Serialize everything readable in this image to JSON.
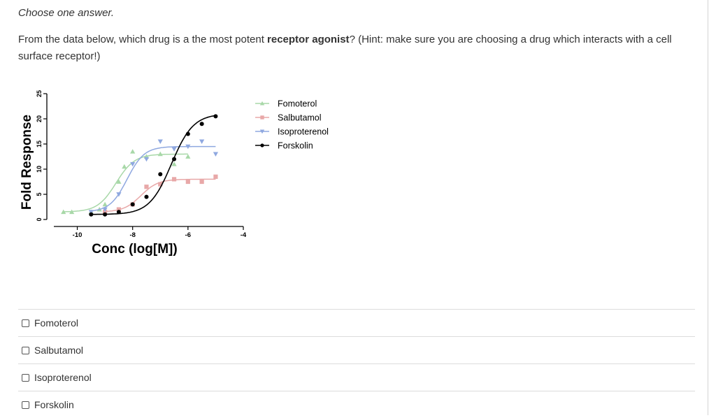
{
  "instruction": "Choose one answer.",
  "question": {
    "prefix": "From the data below, which drug is a the most potent ",
    "bold": "receptor agonist",
    "suffix": "? (Hint: make sure you are choosing a drug which interacts with a cell surface receptor!)"
  },
  "options": [
    {
      "label": "Fomoterol",
      "checked": false
    },
    {
      "label": "Salbutamol",
      "checked": false
    },
    {
      "label": "Isoproterenol",
      "checked": false
    },
    {
      "label": "Forskolin",
      "checked": false
    }
  ],
  "chart_data": {
    "type": "line",
    "title": "",
    "xlabel": "Conc (log[M])",
    "ylabel": "Fold Response",
    "xlim": [
      -11.1,
      -4
    ],
    "ylim": [
      0,
      25
    ],
    "xticks": [
      "-10",
      "-8",
      "-6",
      "-4"
    ],
    "yticks": [
      "0",
      "5",
      "10",
      "15",
      "20",
      "25"
    ],
    "legend_position": "right",
    "series": [
      {
        "name": "Fomoterol",
        "color": "#a8d8a8",
        "marker": "triangle-up",
        "points": [
          [
            -10.5,
            1.5
          ],
          [
            -10.2,
            1.5
          ],
          [
            -9.5,
            1.5
          ],
          [
            -9.2,
            2
          ],
          [
            -9.0,
            3
          ],
          [
            -8.5,
            7.5
          ],
          [
            -8.3,
            10.5
          ],
          [
            -8.0,
            13.5
          ],
          [
            -7.5,
            12.5
          ],
          [
            -7.0,
            13
          ],
          [
            -6.5,
            11
          ],
          [
            -6.0,
            12.5
          ]
        ],
        "curve": {
          "bottom": 1.5,
          "top": 13.0,
          "ec50": -8.6,
          "hill": 1.3
        }
      },
      {
        "name": "Salbutamol",
        "color": "#e8a8a8",
        "marker": "square",
        "points": [
          [
            -9.0,
            1.5
          ],
          [
            -8.5,
            2
          ],
          [
            -8.0,
            3
          ],
          [
            -7.5,
            6.5
          ],
          [
            -7.0,
            7
          ],
          [
            -6.5,
            8
          ],
          [
            -6.0,
            7.5
          ],
          [
            -5.5,
            7.5
          ],
          [
            -5.0,
            8.5
          ]
        ],
        "curve": {
          "bottom": 1.5,
          "top": 8.0,
          "ec50": -7.7,
          "hill": 1.4
        }
      },
      {
        "name": "Isoproterenol",
        "color": "#8fa8e0",
        "marker": "triangle-down",
        "points": [
          [
            -9.5,
            1.5
          ],
          [
            -9.0,
            2
          ],
          [
            -8.5,
            5
          ],
          [
            -8.0,
            11
          ],
          [
            -7.5,
            12
          ],
          [
            -7.0,
            15.5
          ],
          [
            -6.5,
            14
          ],
          [
            -6.0,
            14.5
          ],
          [
            -5.5,
            15.5
          ],
          [
            -5.0,
            13
          ]
        ],
        "curve": {
          "bottom": 1.5,
          "top": 14.5,
          "ec50": -8.2,
          "hill": 1.4
        }
      },
      {
        "name": "Forskolin",
        "color": "#000000",
        "marker": "circle",
        "points": [
          [
            -9.5,
            1
          ],
          [
            -9.0,
            1
          ],
          [
            -8.5,
            1.5
          ],
          [
            -8.0,
            3
          ],
          [
            -7.5,
            4.5
          ],
          [
            -7.0,
            9
          ],
          [
            -6.5,
            12
          ],
          [
            -6.0,
            17
          ],
          [
            -5.5,
            19
          ],
          [
            -5.0,
            20.5
          ]
        ],
        "curve": {
          "bottom": 1.0,
          "top": 21.0,
          "ec50": -6.6,
          "hill": 1.1
        }
      }
    ]
  }
}
